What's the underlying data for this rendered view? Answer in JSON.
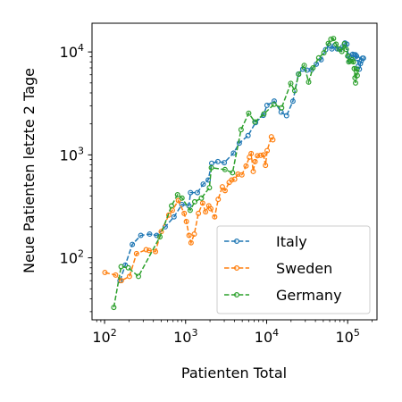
{
  "chart_data": {
    "type": "line",
    "xlabel": "Patienten Total",
    "ylabel": "Neue Patienten letzte 2 Tage",
    "xscale": "log",
    "yscale": "log",
    "xlim": [
      70,
      230000
    ],
    "ylim": [
      25,
      19000
    ],
    "xticks": [
      {
        "value": 100,
        "base": "10",
        "exp": "2"
      },
      {
        "value": 1000,
        "base": "10",
        "exp": "3"
      },
      {
        "value": 10000,
        "base": "10",
        "exp": "4"
      },
      {
        "value": 100000,
        "base": "10",
        "exp": "5"
      }
    ],
    "yticks": [
      {
        "value": 100,
        "base": "10",
        "exp": "2"
      },
      {
        "value": 1000,
        "base": "10",
        "exp": "3"
      },
      {
        "value": 10000,
        "base": "10",
        "exp": "4"
      }
    ],
    "grid": false,
    "legend_position": "lower-right",
    "series": [
      {
        "name": "Italy",
        "color": "#1f77b4",
        "points": [
          [
            155,
            60
          ],
          [
            180,
            85
          ],
          [
            220,
            135
          ],
          [
            280,
            165
          ],
          [
            360,
            170
          ],
          [
            440,
            165
          ],
          [
            560,
            200
          ],
          [
            720,
            250
          ],
          [
            900,
            330
          ],
          [
            1100,
            320
          ],
          [
            1150,
            430
          ],
          [
            1400,
            430
          ],
          [
            1650,
            520
          ],
          [
            1900,
            570
          ],
          [
            2100,
            830
          ],
          [
            2500,
            860
          ],
          [
            3000,
            840
          ],
          [
            3900,
            1040
          ],
          [
            4600,
            1300
          ],
          [
            5900,
            1540
          ],
          [
            7300,
            2060
          ],
          [
            9100,
            2420
          ],
          [
            10100,
            3030
          ],
          [
            12400,
            3330
          ],
          [
            15100,
            2600
          ],
          [
            17600,
            2400
          ],
          [
            21100,
            3320
          ],
          [
            24700,
            6100
          ],
          [
            27900,
            6800
          ],
          [
            31500,
            6650
          ],
          [
            35700,
            6700
          ],
          [
            41000,
            7600
          ],
          [
            47000,
            8400
          ],
          [
            53500,
            10500
          ],
          [
            59100,
            11600
          ],
          [
            63900,
            10700
          ],
          [
            69200,
            11600
          ],
          [
            74400,
            10700
          ],
          [
            80500,
            10600
          ],
          [
            86500,
            11200
          ],
          [
            92500,
            12200
          ],
          [
            97700,
            11900
          ],
          [
            101700,
            9200
          ],
          [
            105800,
            8200
          ],
          [
            110500,
            8800
          ],
          [
            115200,
            9500
          ],
          [
            119800,
            9400
          ],
          [
            124600,
            9400
          ],
          [
            128900,
            9100
          ],
          [
            132500,
            8600
          ],
          [
            135600,
            7300
          ],
          [
            139400,
            6800
          ],
          [
            143600,
            7700
          ],
          [
            147600,
            8200
          ],
          [
            152300,
            8700
          ],
          [
            156300,
            8700
          ]
        ]
      },
      {
        "name": "Sweden",
        "color": "#ff7f0e",
        "points": [
          [
            101,
            72
          ],
          [
            137,
            68
          ],
          [
            161,
            60
          ],
          [
            203,
            66
          ],
          [
            248,
            110
          ],
          [
            326,
            120
          ],
          [
            355,
            118
          ],
          [
            425,
            115
          ],
          [
            500,
            180
          ],
          [
            620,
            260
          ],
          [
            687,
            290
          ],
          [
            814,
            360
          ],
          [
            961,
            270
          ],
          [
            1022,
            225
          ],
          [
            1103,
            165
          ],
          [
            1167,
            140
          ],
          [
            1279,
            170
          ],
          [
            1439,
            270
          ],
          [
            1623,
            340
          ],
          [
            1763,
            280
          ],
          [
            1934,
            320
          ],
          [
            2046,
            300
          ],
          [
            2286,
            250
          ],
          [
            2526,
            370
          ],
          [
            2840,
            490
          ],
          [
            3069,
            450
          ],
          [
            3447,
            540
          ],
          [
            3700,
            570
          ],
          [
            4028,
            580
          ],
          [
            4435,
            650
          ],
          [
            4947,
            640
          ],
          [
            5568,
            780
          ],
          [
            6131,
            950
          ],
          [
            6443,
            1030
          ],
          [
            6830,
            690
          ],
          [
            7206,
            860
          ],
          [
            7693,
            980
          ],
          [
            8419,
            990
          ],
          [
            9141,
            1000
          ],
          [
            9685,
            790
          ],
          [
            10151,
            1100
          ],
          [
            11445,
            1500
          ],
          [
            11927,
            1400
          ]
        ]
      },
      {
        "name": "Germany",
        "color": "#2ca02c",
        "points": [
          [
            130,
            33
          ],
          [
            160,
            82
          ],
          [
            196,
            80
          ],
          [
            262,
            66
          ],
          [
            482,
            160
          ],
          [
            670,
            320
          ],
          [
            795,
            410
          ],
          [
            903,
            380
          ],
          [
            1139,
            290
          ],
          [
            1296,
            350
          ],
          [
            1567,
            380
          ],
          [
            1966,
            480
          ],
          [
            2078,
            750
          ],
          [
            3062,
            720
          ],
          [
            3795,
            670
          ],
          [
            4838,
            1760
          ],
          [
            6012,
            2540
          ],
          [
            7156,
            2090
          ],
          [
            9257,
            2500
          ],
          [
            12327,
            3090
          ],
          [
            15320,
            2870
          ],
          [
            19848,
            4950
          ],
          [
            22213,
            4200
          ],
          [
            24873,
            6070
          ],
          [
            29056,
            7400
          ],
          [
            32991,
            5100
          ],
          [
            37323,
            7000
          ],
          [
            43938,
            8760
          ],
          [
            50871,
            9800
          ],
          [
            57695,
            12100
          ],
          [
            62095,
            13300
          ],
          [
            66885,
            13500
          ],
          [
            71808,
            11900
          ],
          [
            77872,
            10700
          ],
          [
            84794,
            10100
          ],
          [
            91159,
            12000
          ],
          [
            96092,
            10600
          ],
          [
            100123,
            9100
          ],
          [
            103228,
            8000
          ],
          [
            108202,
            8100
          ],
          [
            113525,
            8400
          ],
          [
            117658,
            8000
          ],
          [
            120479,
            6900
          ],
          [
            123016,
            5600
          ],
          [
            125098,
            5000
          ],
          [
            127584,
            6500
          ],
          [
            130072,
            6800
          ],
          [
            131359,
            5900
          ]
        ]
      }
    ]
  }
}
